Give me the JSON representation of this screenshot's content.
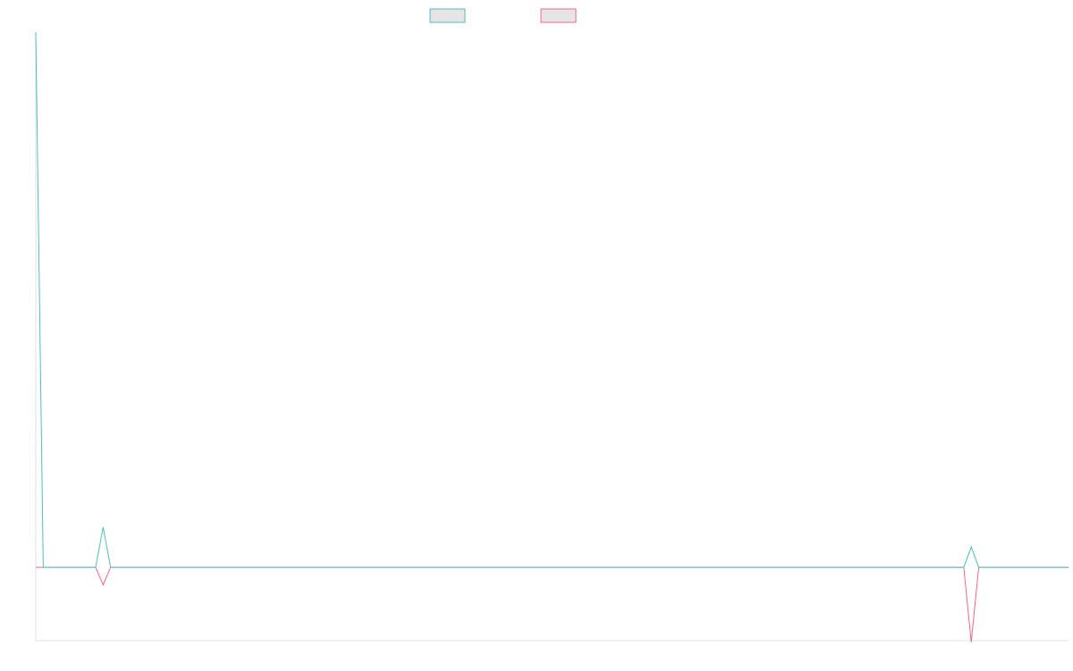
{
  "chart_data": {
    "type": "line",
    "title": "",
    "xlabel": "",
    "ylabel": "",
    "point_count": 139,
    "ylim": [
      -13.7,
      100
    ],
    "grid": false,
    "legend_position": "top",
    "series": [
      {
        "color": "#4bc0c0",
        "points": [
          [
            0,
            100
          ],
          [
            9,
            7.5
          ],
          [
            125,
            3.8
          ]
        ]
      },
      {
        "color": "#ff6384",
        "points": [
          [
            9,
            -3.3
          ],
          [
            125,
            -14
          ]
        ]
      }
    ],
    "default_value": 0
  }
}
